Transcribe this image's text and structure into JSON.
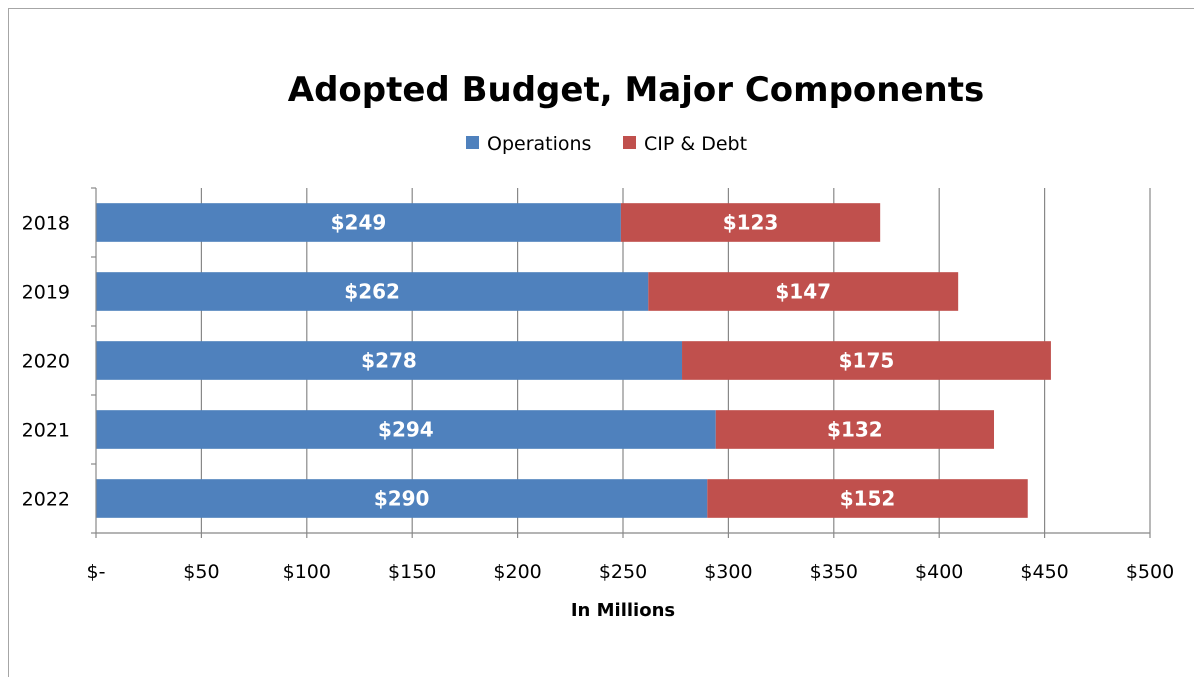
{
  "chart_data": {
    "type": "bar",
    "orientation": "horizontal",
    "stacked": true,
    "title": "Adopted Budget, Major Components",
    "xlabel": "In Millions",
    "ylabel": "",
    "categories": [
      "2018",
      "2019",
      "2020",
      "2021",
      "2022"
    ],
    "series": [
      {
        "name": "Operations",
        "color": "#4f81bd",
        "values": [
          249,
          262,
          278,
          294,
          290
        ],
        "labels": [
          "$249",
          "$262",
          "$278",
          "$294",
          "$290"
        ]
      },
      {
        "name": "CIP & Debt",
        "color": "#c0504d",
        "values": [
          123,
          147,
          175,
          132,
          152
        ],
        "labels": [
          "$123",
          "$147",
          "$175",
          "$132",
          "$152"
        ]
      }
    ],
    "xlim": [
      0,
      500
    ],
    "xticks": [
      0,
      50,
      100,
      150,
      200,
      250,
      300,
      350,
      400,
      450,
      500
    ],
    "xtick_labels": [
      "$-",
      "$50",
      "$100",
      "$150",
      "$200",
      "$250",
      "$300",
      "$350",
      "$400",
      "$450",
      "$500"
    ],
    "grid": true,
    "legend_position": "top"
  }
}
